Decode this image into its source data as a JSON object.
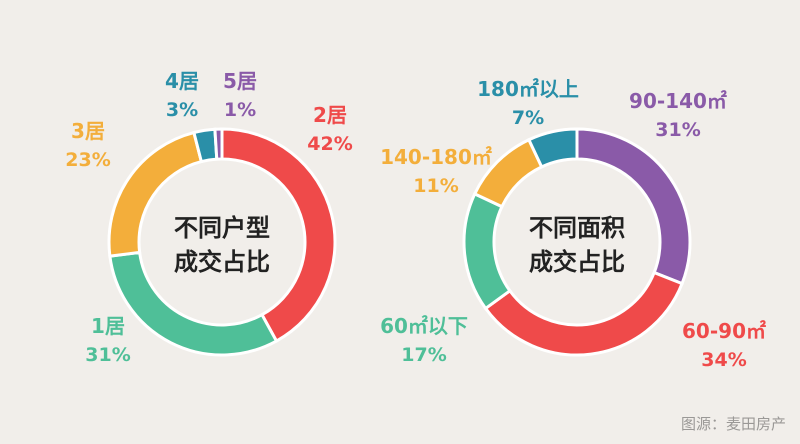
{
  "chart_data": [
    {
      "type": "pie",
      "title": "不同户型成交占比",
      "title_lines": [
        "不同户型",
        "成交占比"
      ],
      "slices": [
        {
          "label": "2居",
          "value": 42,
          "value_label": "42%",
          "color": "#ef4a4a"
        },
        {
          "label": "1居",
          "value": 31,
          "value_label": "31%",
          "color": "#4fbf98"
        },
        {
          "label": "3居",
          "value": 23,
          "value_label": "23%",
          "color": "#f3ae3b"
        },
        {
          "label": "4居",
          "value": 3,
          "value_label": "3%",
          "color": "#2a8fa8"
        },
        {
          "label": "5居",
          "value": 1,
          "value_label": "1%",
          "color": "#8a5aa8"
        }
      ]
    },
    {
      "type": "pie",
      "title": "不同面积成交占比",
      "title_lines": [
        "不同面积",
        "成交占比"
      ],
      "slices": [
        {
          "label": "90-140㎡",
          "value": 31,
          "value_label": "31%",
          "color": "#8a5aa8"
        },
        {
          "label": "60-90㎡",
          "value": 34,
          "value_label": "34%",
          "color": "#ef4a4a"
        },
        {
          "label": "60㎡以下",
          "value": 17,
          "value_label": "17%",
          "color": "#4fbf98"
        },
        {
          "label": "140-180㎡",
          "value": 11,
          "value_label": "11%",
          "color": "#f3ae3b"
        },
        {
          "label": "180㎡以上",
          "value": 7,
          "value_label": "7%",
          "color": "#2a8fa8"
        }
      ]
    }
  ],
  "source": "图源：麦田房产"
}
